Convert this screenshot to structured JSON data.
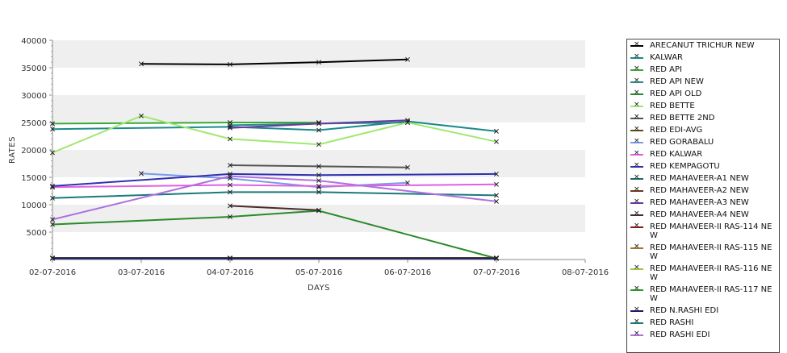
{
  "chart_data": {
    "type": "line",
    "title": "",
    "xlabel": "DAYS",
    "ylabel": "RATES",
    "ylim": [
      0,
      40000
    ],
    "y_ticks": [
      "5000",
      "10000",
      "15000",
      "20000",
      "25000",
      "30000",
      "35000",
      "40000"
    ],
    "x_ticks": [
      "02-07-2016",
      "03-07-2016",
      "04-07-2016",
      "05-07-2016",
      "06-07-2016",
      "07-07-2016",
      "08-07-2016"
    ],
    "grid": "horizontal alternating bands",
    "legend_position": "right",
    "series": [
      {
        "name": "ARECANUT TRICHUR NEW",
        "color": "#000000",
        "points": [
          [
            "03-07-2016",
            35700
          ],
          [
            "04-07-2016",
            35600
          ],
          [
            "05-07-2016",
            36000
          ],
          [
            "06-07-2016",
            36500
          ]
        ]
      },
      {
        "name": "KALWAR",
        "color": "#1a8a8a",
        "points": [
          [
            "02-07-2016",
            23800
          ],
          [
            "04-07-2016",
            24200
          ],
          [
            "05-07-2016",
            23600
          ],
          [
            "06-07-2016",
            25200
          ],
          [
            "07-07-2016",
            23400
          ]
        ]
      },
      {
        "name": "RED API",
        "color": "#3aa83a",
        "points": [
          [
            "02-07-2016",
            24800
          ],
          [
            "04-07-2016",
            25000
          ],
          [
            "05-07-2016",
            25000
          ]
        ]
      },
      {
        "name": "RED API NEW",
        "color": "#2a8a8a",
        "points": [
          [
            "04-07-2016",
            24500
          ],
          [
            "05-07-2016",
            24800
          ],
          [
            "06-07-2016",
            25000
          ]
        ]
      },
      {
        "name": "RED API OLD",
        "color": "#2a8a2a",
        "points": [
          [
            "02-07-2016",
            6400
          ],
          [
            "04-07-2016",
            7800
          ],
          [
            "05-07-2016",
            8900
          ],
          [
            "07-07-2016",
            200
          ]
        ]
      },
      {
        "name": "RED BETTE",
        "color": "#9fe870",
        "points": [
          [
            "02-07-2016",
            19500
          ],
          [
            "03-07-2016",
            26200
          ],
          [
            "04-07-2016",
            22000
          ],
          [
            "05-07-2016",
            21000
          ],
          [
            "06-07-2016",
            25000
          ],
          [
            "07-07-2016",
            21500
          ]
        ]
      },
      {
        "name": "RED BETTE 2ND",
        "color": "#555555",
        "points": [
          [
            "04-07-2016",
            17200
          ],
          [
            "05-07-2016",
            17000
          ],
          [
            "06-07-2016",
            16800
          ]
        ]
      },
      {
        "name": "RED EDI-AVG",
        "color": "#5a4a1a",
        "points": [
          [
            "02-07-2016",
            300
          ],
          [
            "07-07-2016",
            300
          ]
        ]
      },
      {
        "name": "RED GORABALU",
        "color": "#7a9ae8",
        "points": [
          [
            "03-07-2016",
            15700
          ],
          [
            "04-07-2016",
            14800
          ],
          [
            "05-07-2016",
            13200
          ],
          [
            "06-07-2016",
            14000
          ]
        ]
      },
      {
        "name": "RED KALWAR",
        "color": "#e060e0",
        "points": [
          [
            "02-07-2016",
            13200
          ],
          [
            "04-07-2016",
            13600
          ],
          [
            "05-07-2016",
            13400
          ],
          [
            "07-07-2016",
            13700
          ]
        ]
      },
      {
        "name": "RED KEMPAGOTU",
        "color": "#3030b0",
        "points": [
          [
            "02-07-2016",
            13400
          ],
          [
            "04-07-2016",
            15600
          ],
          [
            "05-07-2016",
            15400
          ],
          [
            "07-07-2016",
            15600
          ]
        ]
      },
      {
        "name": "RED MAHAVEER-A1 NEW",
        "color": "#1a6a6a",
        "points": [
          [
            "02-07-2016",
            200
          ],
          [
            "07-07-2016",
            200
          ]
        ]
      },
      {
        "name": "RED MAHAVEER-A2 NEW",
        "color": "#6a3a1a",
        "points": [
          [
            "04-07-2016",
            300
          ],
          [
            "07-07-2016",
            300
          ]
        ]
      },
      {
        "name": "RED MAHAVEER-A3 NEW",
        "color": "#6a3aa0",
        "points": [
          [
            "04-07-2016",
            24000
          ],
          [
            "05-07-2016",
            24800
          ],
          [
            "06-07-2016",
            25400
          ]
        ]
      },
      {
        "name": "RED MAHAVEER-A4 NEW",
        "color": "#4a2a2a",
        "points": [
          [
            "04-07-2016",
            9800
          ],
          [
            "05-07-2016",
            9000
          ]
        ]
      },
      {
        "name": "RED MAHAVEER-II RAS-114 NEW",
        "color": "#8a1a1a",
        "points": [
          [
            "04-07-2016",
            200
          ],
          [
            "07-07-2016",
            200
          ]
        ]
      },
      {
        "name": "RED MAHAVEER-II RAS-115 NEW",
        "color": "#a07a2a",
        "points": [
          [
            "04-07-2016",
            200
          ],
          [
            "07-07-2016",
            200
          ]
        ]
      },
      {
        "name": "RED MAHAVEER-II RAS-116 NEW",
        "color": "#a0c840",
        "points": [
          [
            "04-07-2016",
            200
          ],
          [
            "07-07-2016",
            200
          ]
        ]
      },
      {
        "name": "RED MAHAVEER-II RAS-117 NEW",
        "color": "#2a9a2a",
        "points": [
          [
            "04-07-2016",
            200
          ],
          [
            "07-07-2016",
            200
          ]
        ]
      },
      {
        "name": "RED N.RASHI EDI",
        "color": "#1a1a6a",
        "points": [
          [
            "02-07-2016",
            200
          ],
          [
            "07-07-2016",
            200
          ]
        ]
      },
      {
        "name": "RED RASHI",
        "color": "#1a7a7a",
        "points": [
          [
            "02-07-2016",
            11200
          ],
          [
            "04-07-2016",
            12300
          ],
          [
            "05-07-2016",
            12300
          ],
          [
            "07-07-2016",
            11700
          ]
        ]
      },
      {
        "name": "RED RASHI EDI",
        "color": "#b070e0",
        "points": [
          [
            "02-07-2016",
            7300
          ],
          [
            "04-07-2016",
            15200
          ],
          [
            "05-07-2016",
            14400
          ],
          [
            "07-07-2016",
            10600
          ]
        ]
      }
    ]
  },
  "legend_items": [
    "ARECANUT TRICHUR NEW",
    "KALWAR",
    "RED API",
    "RED API NEW",
    "RED API OLD",
    "RED BETTE",
    "RED BETTE 2ND",
    "RED EDI-AVG",
    "RED GORABALU",
    "RED KALWAR",
    "RED KEMPAGOTU",
    "RED MAHAVEER-A1 NEW",
    "RED MAHAVEER-A2 NEW",
    "RED MAHAVEER-A3 NEW",
    "RED MAHAVEER-A4 NEW",
    "RED MAHAVEER-II RAS-114 NEW",
    "RED MAHAVEER-II RAS-115 NEW",
    "RED MAHAVEER-II RAS-116 NEW",
    "RED MAHAVEER-II RAS-117 NEW",
    "RED N.RASHI EDI",
    "RED RASHI",
    "RED RASHI EDI"
  ]
}
